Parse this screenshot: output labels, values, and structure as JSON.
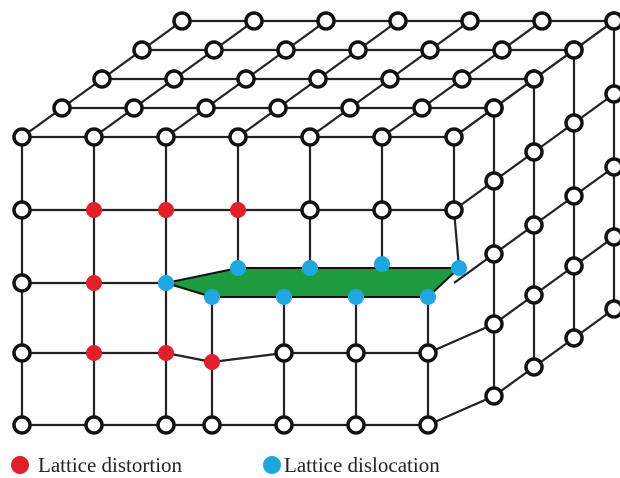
{
  "legend": {
    "items": [
      {
        "label": "Lattice distortion",
        "color": "#e0202a"
      },
      {
        "label": "Lattice dislocation",
        "color": "#1fa8e0"
      }
    ]
  }
}
